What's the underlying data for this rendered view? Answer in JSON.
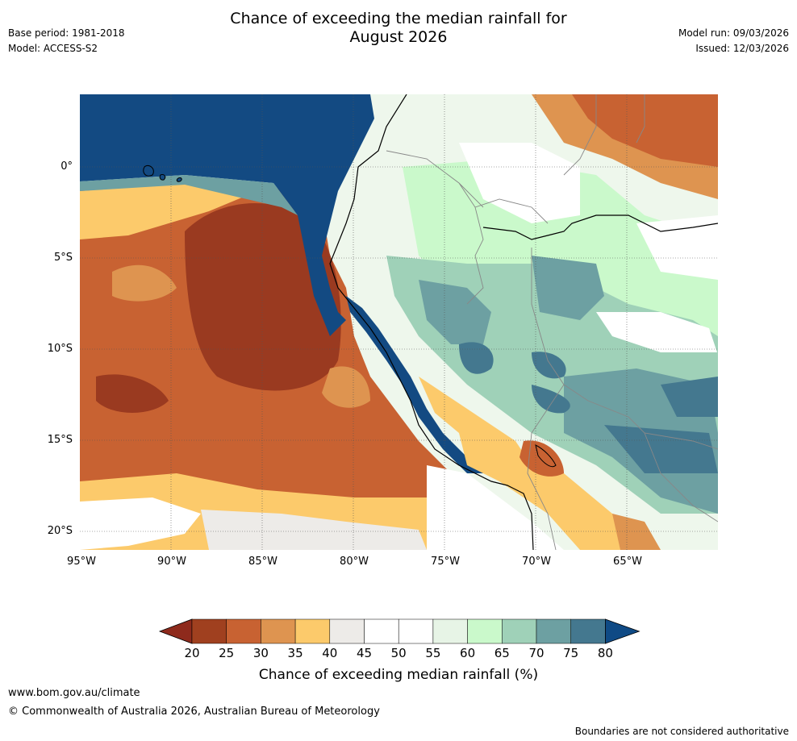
{
  "header": {
    "title_line1": "Chance of exceeding the median rainfall for",
    "title_line2": "August 2026",
    "base_period": "Base period: 1981-2018",
    "model": "Model: ACCESS-S2",
    "model_run": "Model run: 09/03/2026",
    "issued": "Issued: 12/03/2026"
  },
  "axes": {
    "lat_labels": [
      {
        "value": 0,
        "text": "0°"
      },
      {
        "value": -5,
        "text": "5°S"
      },
      {
        "value": -10,
        "text": "10°S"
      },
      {
        "value": -15,
        "text": "15°S"
      },
      {
        "value": -20,
        "text": "20°S"
      }
    ],
    "lon_labels": [
      {
        "value": -95,
        "text": "95°W"
      },
      {
        "value": -90,
        "text": "90°W"
      },
      {
        "value": -85,
        "text": "85°W"
      },
      {
        "value": -80,
        "text": "80°W"
      },
      {
        "value": -75,
        "text": "75°W"
      },
      {
        "value": -70,
        "text": "70°W"
      },
      {
        "value": -65,
        "text": "65°W"
      }
    ],
    "lon_range": [
      -95,
      -60
    ],
    "lat_range": [
      -21,
      4
    ]
  },
  "colorbar": {
    "ticks": [
      "20",
      "25",
      "30",
      "35",
      "40",
      "45",
      "50",
      "55",
      "60",
      "65",
      "70",
      "75",
      "80"
    ],
    "colors": [
      "#a0401f",
      "#c86232",
      "#de9450",
      "#fcca6b",
      "#edebe8",
      "#ffffff",
      "#ffffff",
      "#e7f4e6",
      "#caf9cb",
      "#9fd1b8",
      "#6da0a2",
      "#44788f",
      "#154a80"
    ],
    "under_color": "#8e2a1c",
    "over_color": "#0f4a85",
    "label": "Chance of exceeding median rainfall (%)"
  },
  "footer": {
    "url": "www.bom.gov.au/climate",
    "copyright": "© Commonwealth of Australia 2026, Australian Bureau of Meteorology",
    "note": "Boundaries are not considered authoritative"
  }
}
